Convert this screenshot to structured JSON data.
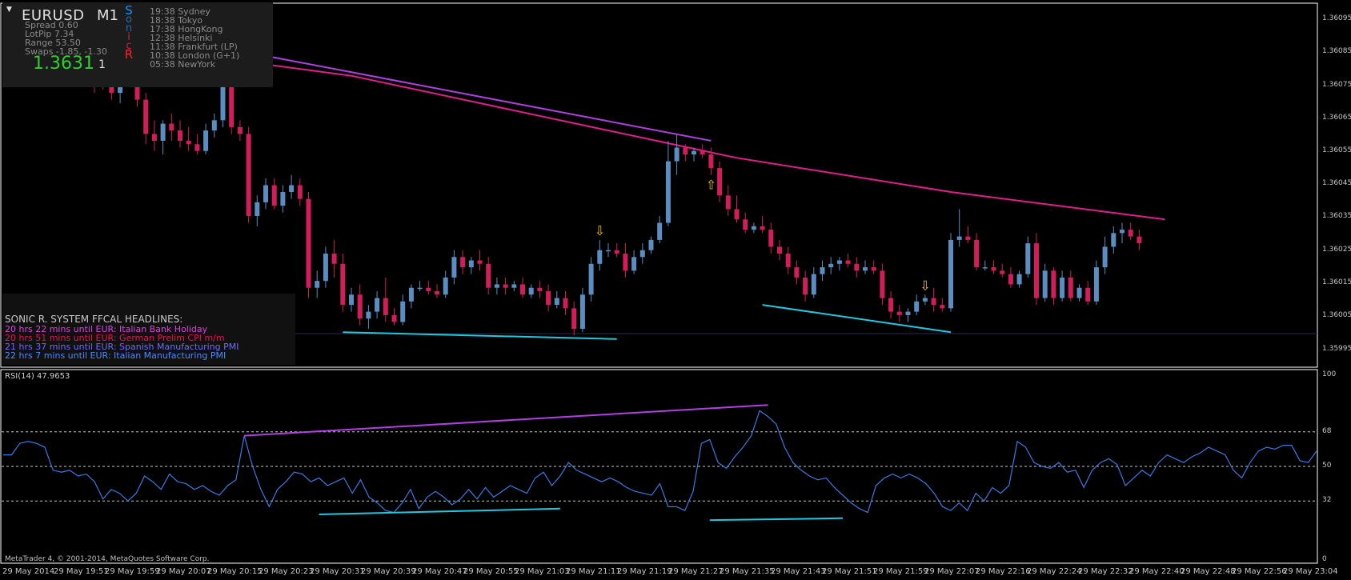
{
  "window": {
    "symbol": "EURUSD",
    "timeframe": "M1"
  },
  "info_panel": {
    "sonic_letters": [
      {
        "ch": "S",
        "color": "#1e90ff"
      },
      {
        "ch": "o",
        "color": "#1f6fb0"
      },
      {
        "ch": "n",
        "color": "#1f6fb0"
      },
      {
        "ch": "i",
        "color": "#c0284a"
      },
      {
        "ch": "c",
        "color": "#c0284a"
      },
      {
        "ch": "R",
        "color": "#ff2020"
      }
    ],
    "stats": [
      "Spread 0.60",
      "LotPip 7.34",
      "Range 53.50",
      "Swaps -1.85, -1.30"
    ],
    "price": "1.3631",
    "ticks": "1",
    "clocks": [
      "19:38 Sydney",
      "18:38 Tokyo",
      "17:38 HongKong",
      "12:38 Helsinki",
      "11:38 Frankfurt (LP)",
      "10:38 London (G+1)",
      "05:38 NewYork"
    ]
  },
  "news": {
    "title": "SONIC R. SYSTEM  FFCAL HEADLINES:",
    "items": [
      {
        "text": "20 hrs 22 mins until EUR: Italian Bank Holiday",
        "color": "#e040e0"
      },
      {
        "text": "20 hrs 51 mins until EUR: German Prelim CPI m/m",
        "color": "#e0184a"
      },
      {
        "text": "21 hrs 37 mins until EUR: Spanish Manufacturing PMI",
        "color": "#6a6aff"
      },
      {
        "text": "22 hrs 7 mins until EUR: Italian Manufacturing PMI",
        "color": "#4a8aff"
      }
    ]
  },
  "price_axis": [
    "1.36095",
    "1.36085",
    "1.36075",
    "1.36065",
    "1.36055",
    "1.36045",
    "1.36035",
    "1.36025",
    "1.36015",
    "1.36005",
    "1.35995"
  ],
  "rsi_axis": [
    "100",
    "68",
    "50",
    "32",
    "0"
  ],
  "rsi_label": "RSI(14) 47.9653",
  "copyright": "MetaTrader 4, © 2001-2014, MetaQuotes Software Corp.",
  "time_axis": [
    "29 May 2014",
    "29 May 19:51",
    "29 May 19:59",
    "29 May 20:07",
    "29 May 20:15",
    "29 May 20:23",
    "29 May 20:31",
    "29 May 20:39",
    "29 May 20:47",
    "29 May 20:55",
    "29 May 21:03",
    "29 May 21:11",
    "29 May 21:19",
    "29 May 21:27",
    "29 May 21:35",
    "29 May 21:43",
    "29 May 21:51",
    "29 May 21:59",
    "29 May 22:07",
    "29 May 22:16",
    "29 May 22:24",
    "29 May 22:32",
    "29 May 22:40",
    "29 May 22:48",
    "29 May 22:56",
    "29 May 23:04"
  ],
  "colors": {
    "bull": "#5a8ec0",
    "bear": "#d01e5a",
    "ma": "#e01e8c",
    "trend_purple": "#b040e0",
    "trend_cyan": "#20c8e0",
    "rsi": "#3a7ae0",
    "arrow": "#f0c000"
  },
  "chart_data": [
    {
      "type": "candlestick",
      "title": "EURUSD M1",
      "price_range": [
        1.35992,
        1.36098
      ],
      "candles_ohlc": [
        [
          1.36081,
          1.36084,
          1.36072,
          1.36079
        ],
        [
          1.36079,
          1.36081,
          1.36073,
          1.36076
        ],
        [
          1.36076,
          1.36079,
          1.3607,
          1.36072
        ],
        [
          1.36072,
          1.36077,
          1.36069,
          1.36075
        ],
        [
          1.36075,
          1.36081,
          1.36074,
          1.36079
        ],
        [
          1.36079,
          1.36082,
          1.36068,
          1.3607
        ],
        [
          1.3607,
          1.36072,
          1.36057,
          1.3606
        ],
        [
          1.3606,
          1.36064,
          1.36055,
          1.36058
        ],
        [
          1.36058,
          1.36064,
          1.36054,
          1.36063
        ],
        [
          1.36063,
          1.36066,
          1.36058,
          1.36061
        ],
        [
          1.36061,
          1.36064,
          1.36056,
          1.36058
        ],
        [
          1.36058,
          1.36062,
          1.36055,
          1.36057
        ],
        [
          1.36057,
          1.3606,
          1.36054,
          1.36055
        ],
        [
          1.36055,
          1.36063,
          1.36054,
          1.36061
        ],
        [
          1.36061,
          1.36066,
          1.36059,
          1.36064
        ],
        [
          1.36064,
          1.36087,
          1.36062,
          1.36084
        ],
        [
          1.36084,
          1.36088,
          1.3606,
          1.36062
        ],
        [
          1.36062,
          1.36064,
          1.36058,
          1.3606
        ],
        [
          1.3606,
          1.36062,
          1.36034,
          1.36036
        ],
        [
          1.36036,
          1.36042,
          1.36033,
          1.3604
        ],
        [
          1.3604,
          1.36047,
          1.36038,
          1.36045
        ],
        [
          1.36045,
          1.36047,
          1.36038,
          1.36039
        ],
        [
          1.36039,
          1.36045,
          1.36037,
          1.36043
        ],
        [
          1.36043,
          1.36048,
          1.36041,
          1.36045
        ],
        [
          1.36045,
          1.36047,
          1.36039,
          1.36041
        ],
        [
          1.36041,
          1.36043,
          1.36012,
          1.36015
        ],
        [
          1.36015,
          1.3602,
          1.36012,
          1.36017
        ],
        [
          1.36017,
          1.36027,
          1.36015,
          1.36025
        ],
        [
          1.36025,
          1.36029,
          1.36018,
          1.36022
        ],
        [
          1.36022,
          1.36025,
          1.36008,
          1.3601
        ],
        [
          1.3601,
          1.36015,
          1.36008,
          1.36013
        ],
        [
          1.36013,
          1.36016,
          1.36004,
          1.36006
        ],
        [
          1.36006,
          1.3601,
          1.36003,
          1.36008
        ],
        [
          1.36008,
          1.36014,
          1.36006,
          1.36012
        ],
        [
          1.36012,
          1.36018,
          1.36005,
          1.36007
        ],
        [
          1.36007,
          1.36009,
          1.36004,
          1.36005
        ],
        [
          1.36005,
          1.36013,
          1.36004,
          1.36011
        ],
        [
          1.36011,
          1.36016,
          1.36009,
          1.36015
        ],
        [
          1.36015,
          1.36017,
          1.36014,
          1.36015
        ],
        [
          1.36015,
          1.36017,
          1.36013,
          1.36014
        ],
        [
          1.36014,
          1.36016,
          1.36012,
          1.36013
        ],
        [
          1.36013,
          1.3602,
          1.36012,
          1.36018
        ],
        [
          1.36018,
          1.36026,
          1.36016,
          1.36024
        ],
        [
          1.36024,
          1.36026,
          1.36019,
          1.36021
        ],
        [
          1.36021,
          1.36024,
          1.36019,
          1.36023
        ],
        [
          1.36023,
          1.36026,
          1.3602,
          1.36022
        ],
        [
          1.36022,
          1.36024,
          1.36013,
          1.36015
        ],
        [
          1.36015,
          1.36018,
          1.36013,
          1.36016
        ],
        [
          1.36016,
          1.36018,
          1.36013,
          1.36015
        ],
        [
          1.36015,
          1.36017,
          1.36014,
          1.36016
        ],
        [
          1.36016,
          1.36018,
          1.36012,
          1.36013
        ],
        [
          1.36013,
          1.36016,
          1.36012,
          1.36015
        ],
        [
          1.36015,
          1.36017,
          1.36012,
          1.36014
        ],
        [
          1.36014,
          1.36016,
          1.36008,
          1.3601
        ],
        [
          1.3601,
          1.36014,
          1.36009,
          1.36012
        ],
        [
          1.36012,
          1.36014,
          1.36007,
          1.36009
        ],
        [
          1.36009,
          1.36011,
          1.36001,
          1.36003
        ],
        [
          1.36003,
          1.36015,
          1.36002,
          1.36013
        ],
        [
          1.36013,
          1.36024,
          1.36011,
          1.36022
        ],
        [
          1.36022,
          1.36029,
          1.3602,
          1.36026
        ],
        [
          1.36026,
          1.36028,
          1.36024,
          1.36026
        ],
        [
          1.36026,
          1.36028,
          1.36024,
          1.36025
        ],
        [
          1.36025,
          1.36028,
          1.36018,
          1.3602
        ],
        [
          1.3602,
          1.36026,
          1.36019,
          1.36024
        ],
        [
          1.36024,
          1.36028,
          1.36022,
          1.36026
        ],
        [
          1.36026,
          1.3603,
          1.36025,
          1.36029
        ],
        [
          1.36029,
          1.36036,
          1.36028,
          1.36034
        ],
        [
          1.36034,
          1.36058,
          1.36033,
          1.36052
        ],
        [
          1.36052,
          1.3606,
          1.36048,
          1.36056
        ],
        [
          1.36056,
          1.36057,
          1.36052,
          1.36054
        ],
        [
          1.36054,
          1.36056,
          1.36052,
          1.36055
        ],
        [
          1.36055,
          1.36057,
          1.36053,
          1.36054
        ],
        [
          1.36054,
          1.36056,
          1.36048,
          1.3605
        ],
        [
          1.3605,
          1.36052,
          1.3604,
          1.36042
        ],
        [
          1.36042,
          1.36045,
          1.36036,
          1.36038
        ],
        [
          1.36038,
          1.36042,
          1.36034,
          1.36035
        ],
        [
          1.36035,
          1.36037,
          1.36031,
          1.36032
        ],
        [
          1.36032,
          1.36034,
          1.36031,
          1.36033
        ],
        [
          1.36033,
          1.36036,
          1.36031,
          1.36032
        ],
        [
          1.36032,
          1.36034,
          1.36025,
          1.36027
        ],
        [
          1.36027,
          1.36029,
          1.36023,
          1.36025
        ],
        [
          1.36025,
          1.36027,
          1.36019,
          1.36021
        ],
        [
          1.36021,
          1.36023,
          1.36016,
          1.36018
        ],
        [
          1.36018,
          1.3602,
          1.36011,
          1.36013
        ],
        [
          1.36013,
          1.36021,
          1.36012,
          1.36019
        ],
        [
          1.36019,
          1.36023,
          1.36017,
          1.36021
        ],
        [
          1.36021,
          1.36024,
          1.36019,
          1.36022
        ],
        [
          1.36022,
          1.36024,
          1.3602,
          1.36023
        ],
        [
          1.36023,
          1.36025,
          1.36021,
          1.36022
        ],
        [
          1.36022,
          1.36024,
          1.36018,
          1.3602
        ],
        [
          1.3602,
          1.36023,
          1.36019,
          1.36021
        ],
        [
          1.36021,
          1.36023,
          1.36019,
          1.3602
        ],
        [
          1.3602,
          1.36022,
          1.3601,
          1.36012
        ],
        [
          1.36012,
          1.36014,
          1.36006,
          1.36008
        ],
        [
          1.36008,
          1.3601,
          1.36005,
          1.36007
        ],
        [
          1.36007,
          1.36009,
          1.36005,
          1.36008
        ],
        [
          1.36008,
          1.36013,
          1.36007,
          1.36011
        ],
        [
          1.36011,
          1.36013,
          1.3601,
          1.36012
        ],
        [
          1.36012,
          1.36015,
          1.36008,
          1.3601
        ],
        [
          1.3601,
          1.36012,
          1.36008,
          1.36009
        ],
        [
          1.36009,
          1.36031,
          1.36008,
          1.36029
        ],
        [
          1.36029,
          1.36038,
          1.36027,
          1.3603
        ],
        [
          1.3603,
          1.36033,
          1.36028,
          1.36029
        ],
        [
          1.36029,
          1.36031,
          1.3602,
          1.36021
        ],
        [
          1.36021,
          1.36023,
          1.3602,
          1.36021
        ],
        [
          1.36021,
          1.36023,
          1.36019,
          1.3602
        ],
        [
          1.3602,
          1.36022,
          1.36018,
          1.36019
        ],
        [
          1.36019,
          1.36021,
          1.36015,
          1.36016
        ],
        [
          1.36016,
          1.3602,
          1.36015,
          1.36019
        ],
        [
          1.36019,
          1.3603,
          1.36018,
          1.36028
        ],
        [
          1.36028,
          1.36031,
          1.3601,
          1.36012
        ],
        [
          1.36012,
          1.36022,
          1.36011,
          1.3602
        ],
        [
          1.3602,
          1.36021,
          1.3601,
          1.36012
        ],
        [
          1.36012,
          1.3602,
          1.36011,
          1.36018
        ],
        [
          1.36018,
          1.3602,
          1.36011,
          1.36012
        ],
        [
          1.36012,
          1.36016,
          1.36011,
          1.36015
        ],
        [
          1.36015,
          1.36017,
          1.3601,
          1.36011
        ],
        [
          1.36011,
          1.36023,
          1.3601,
          1.36021
        ],
        [
          1.36021,
          1.3603,
          1.36019,
          1.36027
        ],
        [
          1.36027,
          1.36033,
          1.36025,
          1.36031
        ],
        [
          1.36031,
          1.36034,
          1.36028,
          1.36032
        ],
        [
          1.36032,
          1.36034,
          1.36029,
          1.3603
        ],
        [
          1.3603,
          1.36032,
          1.36026,
          1.36028
        ]
      ],
      "moving_average": [
        [
          0,
          1.36087
        ],
        [
          30,
          1.36077
        ],
        [
          60,
          1.36061
        ],
        [
          75,
          1.36053
        ],
        [
          100,
          1.36043
        ],
        [
          125,
          1.36035
        ]
      ],
      "trendlines": [
        {
          "color": "purple",
          "from": [
            5,
            1.3609
          ],
          "to": [
            72,
            1.36058
          ]
        },
        {
          "color": "cyan",
          "from": [
            29,
            1.36002
          ],
          "to": [
            61,
            1.36
          ]
        },
        {
          "color": "cyan",
          "from": [
            78,
            1.3601
          ],
          "to": [
            100,
            1.36002
          ]
        }
      ],
      "arrows": [
        {
          "index": 59,
          "dir": "down"
        },
        {
          "index": 72,
          "dir": "up"
        },
        {
          "index": 97,
          "dir": "down"
        }
      ]
    },
    {
      "type": "line",
      "title": "RSI(14) 47.9653",
      "ylim": [
        0,
        100
      ],
      "levels": [
        68,
        50,
        32
      ],
      "values": [
        56,
        56,
        62,
        63,
        62,
        60,
        48,
        47,
        48,
        45,
        46,
        42,
        33,
        38,
        36,
        32,
        36,
        45,
        42,
        38,
        46,
        42,
        41,
        38,
        40,
        37,
        35,
        40,
        43,
        66,
        50,
        38,
        29,
        38,
        42,
        47,
        46,
        42,
        44,
        40,
        42,
        44,
        36,
        43,
        34,
        31,
        27,
        26,
        31,
        38,
        28,
        34,
        37,
        34,
        30,
        33,
        38,
        33,
        39,
        34,
        37,
        40,
        38,
        36,
        44,
        47,
        40,
        45,
        52,
        48,
        46,
        44,
        42,
        44,
        42,
        39,
        37,
        36,
        35,
        41,
        29,
        29,
        27,
        37,
        62,
        64,
        52,
        49,
        55,
        60,
        66,
        79,
        76,
        72,
        60,
        52,
        48,
        45,
        43,
        44,
        39,
        35,
        31,
        28,
        26,
        40,
        44,
        46,
        44,
        46,
        44,
        41,
        36,
        29,
        27,
        31,
        27,
        36,
        32,
        39,
        36,
        40,
        63,
        60,
        52,
        50,
        49,
        52,
        47,
        48,
        39,
        48,
        52,
        54,
        51,
        40,
        44,
        48,
        45,
        52,
        56,
        54,
        52,
        55,
        57,
        60,
        58,
        56,
        48,
        44,
        52,
        58,
        60,
        59,
        61,
        61,
        53,
        52,
        58
      ]
    }
  ]
}
